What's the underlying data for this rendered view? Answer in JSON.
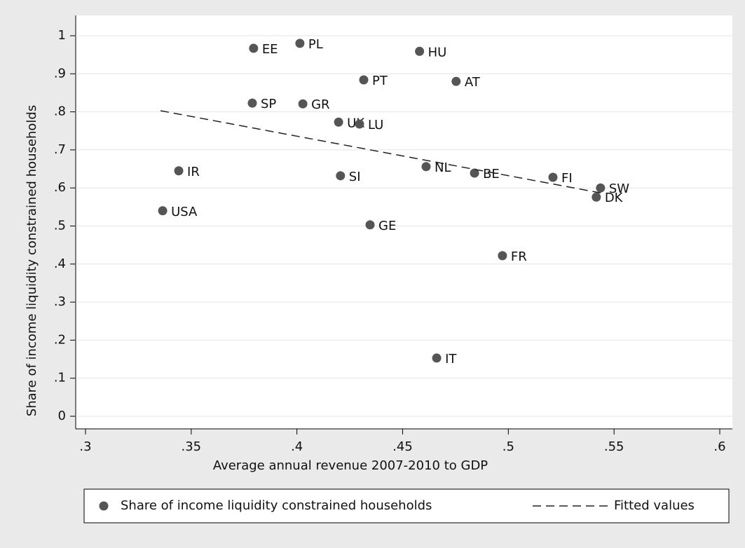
{
  "chart_data": {
    "type": "scatter",
    "x_label": "Average annual revenue 2007-2010 to GDP",
    "y_label": "Share of income liquidity constrained households",
    "xlim": [
      0.3,
      0.6
    ],
    "ylim": [
      0,
      1
    ],
    "xticks": [
      {
        "value": 0.3,
        "label": ".3"
      },
      {
        "value": 0.35,
        "label": ".35"
      },
      {
        "value": 0.4,
        "label": ".4"
      },
      {
        "value": 0.45,
        "label": ".45"
      },
      {
        "value": 0.5,
        "label": ".5"
      },
      {
        "value": 0.55,
        "label": ".55"
      },
      {
        "value": 0.6,
        "label": ".6"
      }
    ],
    "yticks": [
      0,
      {
        "value": 0.1,
        "label": ".1"
      },
      {
        "value": 0.2,
        "label": ".2"
      },
      {
        "value": 0.3,
        "label": ".3"
      },
      {
        "value": 0.4,
        "label": ".4"
      },
      {
        "value": 0.5,
        "label": ".5"
      },
      {
        "value": 0.6,
        "label": ".6"
      },
      {
        "value": 0.7,
        "label": ".7"
      },
      {
        "value": 0.8,
        "label": ".8"
      },
      {
        "value": 0.9,
        "label": ".9"
      },
      1
    ],
    "grid": true,
    "series": [
      {
        "name": "Share of income liquidity constrained households",
        "color": "#555555",
        "style": "markers",
        "labels": [
          "EE",
          "PL",
          "HU",
          "PT",
          "AT",
          "SP",
          "GR",
          "UK",
          "LU",
          "IR",
          "SI",
          "NL",
          "BE",
          "FI",
          "SW",
          "DK",
          "USA",
          "GE",
          "FR",
          "IT"
        ],
        "x": [
          0.3795,
          0.4014,
          0.458,
          0.4316,
          0.4753,
          0.3789,
          0.4028,
          0.4197,
          0.4296,
          0.3441,
          0.4206,
          0.4611,
          0.484,
          0.5211,
          0.5436,
          0.5416,
          0.3365,
          0.4346,
          0.4972,
          0.4661
        ],
        "values": [
          0.967,
          0.98,
          0.959,
          0.884,
          0.88,
          0.823,
          0.821,
          0.773,
          0.768,
          0.645,
          0.632,
          0.656,
          0.639,
          0.628,
          0.6,
          0.576,
          0.54,
          0.503,
          0.422,
          0.153
        ]
      },
      {
        "name": "Fitted values",
        "color": "#222222",
        "style": "dashed-line",
        "x": [
          0.3355,
          0.5436
        ],
        "values": [
          0.803,
          0.587
        ]
      }
    ]
  }
}
